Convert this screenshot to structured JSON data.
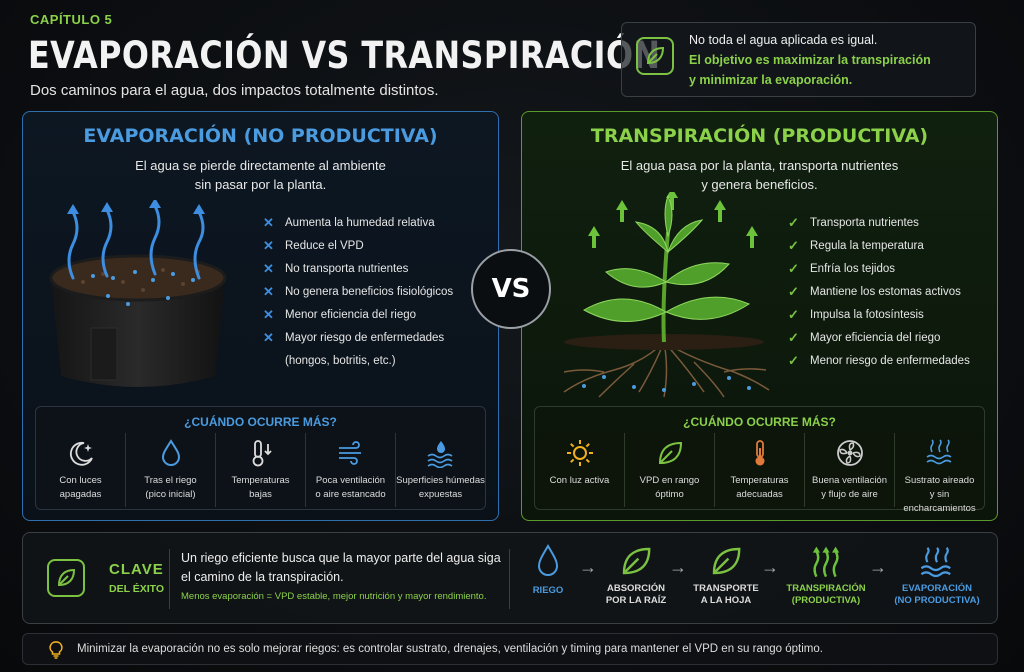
{
  "header": {
    "chapter": "CAPÍTULO 5",
    "title": "EVAPORACIÓN VS TRANSPIRACIÓN",
    "subtitle": "Dos caminos para el agua, dos impactos totalmente distintos."
  },
  "note": {
    "icon": "leaf-icon",
    "line1": "No toda el agua aplicada es igual.",
    "line2": "El objetivo es maximizar la transpiración",
    "line3": "y minimizar la evaporación."
  },
  "evaporation": {
    "title": "EVAPORACIÓN (NO PRODUCTIVA)",
    "desc1": "El agua se pierde directamente al ambiente",
    "desc2": "sin pasar por la planta.",
    "items": [
      "Aumenta la humedad relativa",
      "Reduce el VPD",
      "No transporta nutrientes",
      "No genera beneficios fisiológicos",
      "Menor eficiencia del riego",
      "Mayor riesgo de enfermedades",
      "(hongos, botritis, etc.)"
    ],
    "when_title": "¿CUÁNDO OCURRE MÁS?",
    "when": [
      {
        "icon": "moon-icon",
        "l1": "Con luces",
        "l2": "apagadas"
      },
      {
        "icon": "water-drop-icon",
        "l1": "Tras el riego",
        "l2": "(pico inicial)"
      },
      {
        "icon": "thermometer-down-icon",
        "l1": "Temperaturas",
        "l2": "bajas"
      },
      {
        "icon": "wind-icon",
        "l1": "Poca ventilación",
        "l2": "o aire estancado"
      },
      {
        "icon": "water-surface-icon",
        "l1": "Superficies húmedas",
        "l2": "expuestas"
      }
    ]
  },
  "vs": "VS",
  "transpiration": {
    "title": "TRANSPIRACIÓN (PRODUCTIVA)",
    "desc1": "El agua pasa por la planta, transporta nutrientes",
    "desc2": "y genera beneficios.",
    "items": [
      "Transporta nutrientes",
      "Regula la temperatura",
      "Enfría los tejidos",
      "Mantiene los estomas activos",
      "Impulsa la fotosíntesis",
      "Mayor eficiencia del riego",
      "Menor riesgo de enfermedades"
    ],
    "when_title": "¿CUÁNDO OCURRE MÁS?",
    "when": [
      {
        "icon": "sun-icon",
        "l1": "Con luz activa",
        "l2": ""
      },
      {
        "icon": "leaf-icon",
        "l1": "VPD en rango",
        "l2": "óptimo"
      },
      {
        "icon": "thermometer-icon",
        "l1": "Temperaturas",
        "l2": "adecuadas"
      },
      {
        "icon": "fan-icon",
        "l1": "Buena ventilación",
        "l2": "y flujo de aire"
      },
      {
        "icon": "aerated-substrate-icon",
        "l1": "Sustrato aireado",
        "l2": "y sin encharcamientos"
      }
    ]
  },
  "key": {
    "clave": "CLAVE",
    "exito": "DEL ÉXITO",
    "text1": "Un riego eficiente busca que la mayor parte del agua siga",
    "text2": "el camino de la transpiración.",
    "text3": "Menos evaporación = VPD estable, mejor nutrición y mayor rendimiento.",
    "flow": [
      {
        "l1": "RIEGO",
        "l2": ""
      },
      {
        "l1": "ABSORCIÓN",
        "l2": "POR LA RAÍZ"
      },
      {
        "l1": "TRANSPORTE",
        "l2": "A LA HOJA"
      },
      {
        "l1": "TRANSPIRACIÓN",
        "l2": "(PRODUCTIVA)"
      },
      {
        "l1": "EVAPORACIÓN",
        "l2": "(NO PRODUCTIVA)"
      }
    ]
  },
  "tip": "Minimizar la evaporación no es solo mejorar riegos: es controlar sustrato, drenajes, ventilación y timing para mantener el VPD en su rango óptimo.",
  "colors": {
    "green": "#8bd14a",
    "blue": "#4a9be0"
  }
}
